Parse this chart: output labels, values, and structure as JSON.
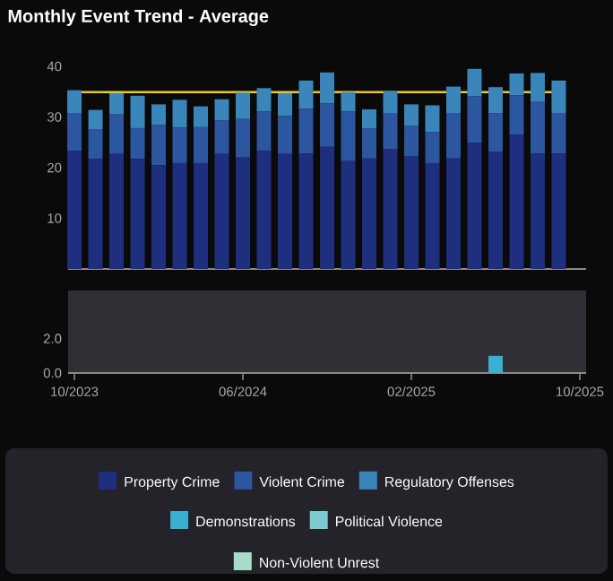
{
  "chart_data": [
    {
      "type": "bar",
      "title": "Monthly Event Trend - Average",
      "stacked": true,
      "legend": "bottom",
      "tick_labels": "y",
      "x": [
        "2023-10",
        "2023-11",
        "2023-12",
        "2024-01",
        "2024-02",
        "2024-03",
        "2024-04",
        "2024-05",
        "2024-06",
        "2024-07",
        "2024-08",
        "2024-09",
        "2024-10",
        "2024-11",
        "2024-12",
        "2025-01",
        "2025-02",
        "2025-03",
        "2025-04",
        "2025-05",
        "2025-06",
        "2025-07",
        "2025-08",
        "2025-09"
      ],
      "xlim": [
        "2023-09-22",
        "2025-10-10"
      ],
      "ylim": [
        0,
        40
      ],
      "yticks": [
        10,
        20,
        30,
        40
      ],
      "series": [
        {
          "name": "Property Crime",
          "color": "#1f2f80",
          "values": [
            23.3,
            21.7,
            22.7,
            21.7,
            20.5,
            20.9,
            20.9,
            22.7,
            22.0,
            23.3,
            22.7,
            22.8,
            24.1,
            21.3,
            21.8,
            23.7,
            22.2,
            20.9,
            21.8,
            24.9,
            23.1,
            26.5,
            22.8,
            22.8
          ]
        },
        {
          "name": "Violent Crime",
          "color": "#2c56a0",
          "values": [
            7.5,
            5.9,
            7.8,
            6.1,
            7.9,
            7.0,
            7.1,
            6.6,
            7.6,
            7.8,
            7.5,
            8.8,
            8.6,
            9.8,
            5.9,
            7.1,
            6.1,
            6.1,
            9.0,
            9.2,
            7.6,
            7.8,
            10.3,
            8.0
          ]
        },
        {
          "name": "Regulatory Offenses",
          "color": "#3a86bb",
          "values": [
            4.5,
            3.8,
            4.2,
            6.4,
            4.1,
            5.5,
            4.1,
            4.2,
            5.2,
            4.6,
            4.5,
            5.6,
            6.1,
            3.8,
            3.8,
            4.3,
            4.2,
            5.3,
            5.2,
            5.4,
            5.2,
            4.3,
            5.6,
            6.4
          ]
        }
      ],
      "ref_lines": [
        {
          "axis": "y",
          "value": 34.9,
          "color": "#e8c930"
        }
      ]
    },
    {
      "type": "bar",
      "stacked": true,
      "legend": "bottom",
      "x": [
        "2023-10",
        "2023-11",
        "2023-12",
        "2024-01",
        "2024-02",
        "2024-03",
        "2024-04",
        "2024-05",
        "2024-06",
        "2024-07",
        "2024-08",
        "2024-09",
        "2024-10",
        "2024-11",
        "2024-12",
        "2025-01",
        "2025-02",
        "2025-03",
        "2025-04",
        "2025-05",
        "2025-06",
        "2025-07",
        "2025-08",
        "2025-09"
      ],
      "xlim": [
        "2023-09-22",
        "2025-10-10"
      ],
      "ylim": [
        0,
        4.8
      ],
      "xticks": [
        {
          "value": "2023-10",
          "label": "10/2023"
        },
        {
          "value": "2024-06",
          "label": "06/2024"
        },
        {
          "value": "2025-02",
          "label": "02/2025"
        },
        {
          "value": "2025-10",
          "label": "10/2025"
        }
      ],
      "yticks": [
        {
          "value": 0,
          "label": "0.0"
        },
        {
          "value": 2,
          "label": "2.0"
        }
      ],
      "series": [
        {
          "name": "Demonstrations",
          "color": "#3ab0d0",
          "values": [
            0,
            0,
            0,
            0,
            0,
            0,
            0,
            0,
            0,
            0,
            0,
            0,
            0,
            0,
            0,
            0,
            0,
            0,
            0,
            0,
            1.0,
            0,
            0,
            0
          ]
        },
        {
          "name": "Political Violence",
          "color": "#7ccbd0",
          "values": [
            0,
            0,
            0,
            0,
            0,
            0,
            0,
            0,
            0,
            0,
            0,
            0,
            0,
            0,
            0,
            0,
            0,
            0,
            0,
            0,
            0,
            0,
            0,
            0
          ]
        },
        {
          "name": "Non-Violent Unrest",
          "color": "#a8dcc8",
          "values": [
            0,
            0,
            0,
            0,
            0,
            0,
            0,
            0,
            0,
            0,
            0,
            0,
            0,
            0,
            0,
            0,
            0,
            0,
            0,
            0,
            0,
            0,
            0,
            0
          ]
        }
      ]
    }
  ]
}
